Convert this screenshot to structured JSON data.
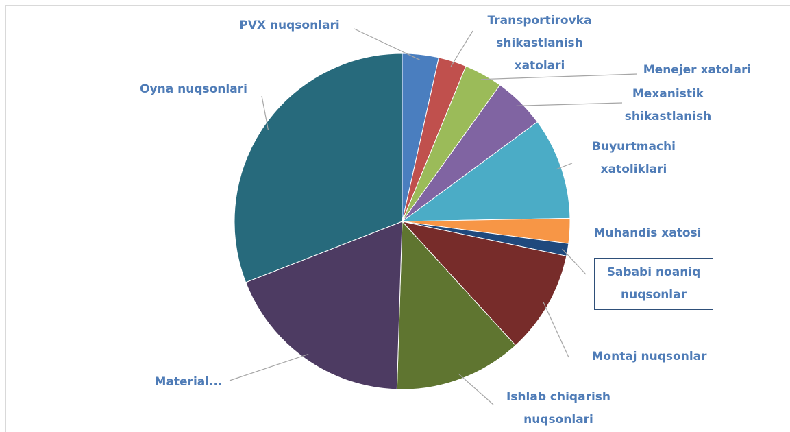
{
  "chart_data": {
    "type": "pie",
    "categories": [
      "PVX nuqsonlari",
      "Transportirovka shikastlanish xatolari",
      "Menejer xatolari",
      "Mexanistik shikastlanish",
      "Buyurtmachi xatoliklari",
      "Muhandis xatosi",
      "Sababi noaniq nuqsonlar",
      "Montaj nuqsonlar",
      "Ishlab chiqarish nuqsonlari",
      "Material...",
      "Oyna nuqsonlari"
    ],
    "values": [
      3.5,
      2.7,
      3.7,
      5,
      9.8,
      2.4,
      1.2,
      9.9,
      12.3,
      18.6,
      30.9
    ],
    "colors": [
      "#4a7ebf",
      "#c0504d",
      "#9bbb59",
      "#8064a2",
      "#4bacc6",
      "#f79646",
      "#1f497d",
      "#772c2a",
      "#5f7530",
      "#4d3b62",
      "#276a7c"
    ]
  }
}
